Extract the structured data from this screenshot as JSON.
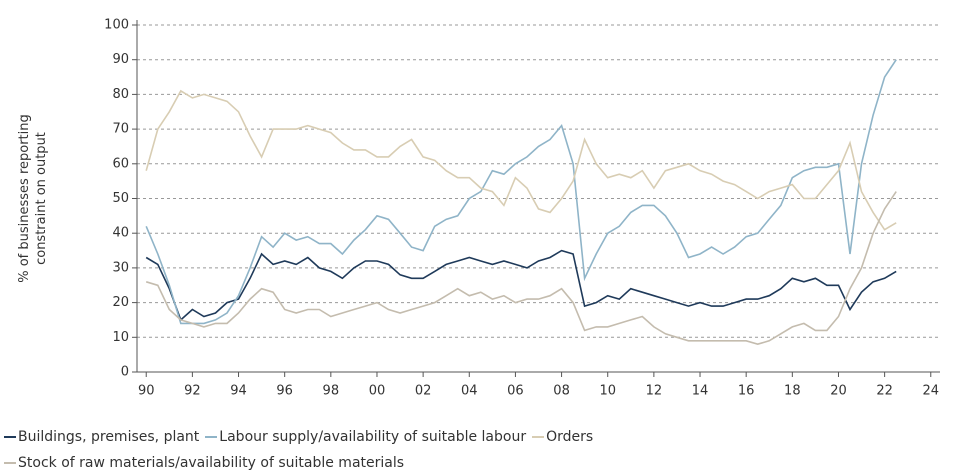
{
  "chart_data": {
    "type": "line",
    "ylabel": [
      "% of businesses reporting",
      "constraint on output"
    ],
    "x": [
      1990,
      1990.5,
      1991,
      1991.5,
      1992,
      1992.5,
      1993,
      1993.5,
      1994,
      1994.5,
      1995,
      1995.5,
      1996,
      1996.5,
      1997,
      1997.5,
      1998,
      1998.5,
      1999,
      1999.5,
      2000,
      2000.5,
      2001,
      2001.5,
      2002,
      2002.5,
      2003,
      2003.5,
      2004,
      2004.5,
      2005,
      2005.5,
      2006,
      2006.5,
      2007,
      2007.5,
      2008,
      2008.5,
      2009,
      2009.5,
      2010,
      2010.5,
      2011,
      2011.5,
      2012,
      2012.5,
      2013,
      2013.5,
      2014,
      2014.5,
      2015,
      2015.5,
      2016,
      2016.5,
      2017,
      2017.5,
      2018,
      2018.5,
      2019,
      2019.5,
      2020,
      2020.5,
      2021,
      2021.5,
      2022,
      2022.5
    ],
    "series": [
      {
        "name": "Buildings, premises, plant",
        "color": "#1f3a5a",
        "values": [
          33,
          31,
          24,
          15,
          18,
          16,
          17,
          20,
          21,
          27,
          34,
          31,
          32,
          31,
          33,
          30,
          29,
          27,
          30,
          32,
          32,
          31,
          28,
          27,
          27,
          29,
          31,
          32,
          33,
          32,
          31,
          32,
          31,
          30,
          32,
          33,
          35,
          34,
          19,
          20,
          22,
          21,
          24,
          23,
          22,
          21,
          20,
          19,
          20,
          19,
          19,
          20,
          21,
          21,
          22,
          24,
          27,
          26,
          27,
          25,
          25,
          18,
          23,
          26,
          27,
          29
        ]
      },
      {
        "name": "Labour supply/availability of suitable labour",
        "color": "#8fb4c8",
        "values": [
          42,
          34,
          25,
          14,
          14,
          14,
          15,
          17,
          22,
          30,
          39,
          36,
          40,
          38,
          39,
          37,
          37,
          34,
          38,
          41,
          45,
          44,
          40,
          36,
          35,
          42,
          44,
          45,
          50,
          52,
          58,
          57,
          60,
          62,
          65,
          67,
          71,
          60,
          27,
          34,
          40,
          42,
          46,
          48,
          48,
          45,
          40,
          33,
          34,
          36,
          34,
          36,
          39,
          40,
          44,
          48,
          56,
          58,
          59,
          59,
          60,
          34,
          60,
          74,
          85,
          90
        ]
      },
      {
        "name": "Orders",
        "color": "#d8cdb3",
        "values": [
          58,
          70,
          75,
          81,
          79,
          80,
          79,
          78,
          75,
          68,
          62,
          70,
          70,
          70,
          71,
          70,
          69,
          66,
          64,
          64,
          62,
          62,
          65,
          67,
          62,
          61,
          58,
          56,
          56,
          53,
          52,
          48,
          56,
          53,
          47,
          46,
          50,
          55,
          67,
          60,
          56,
          57,
          56,
          58,
          53,
          58,
          59,
          60,
          58,
          57,
          55,
          54,
          52,
          50,
          52,
          53,
          54,
          50,
          50,
          54,
          58,
          66,
          52,
          46,
          41,
          43
        ]
      },
      {
        "name": "Stock of raw materials/availability of suitable materials",
        "color": "#c4bcae",
        "values": [
          26,
          25,
          18,
          15,
          14,
          13,
          14,
          14,
          17,
          21,
          24,
          23,
          18,
          17,
          18,
          18,
          16,
          17,
          18,
          19,
          20,
          18,
          17,
          18,
          19,
          20,
          22,
          24,
          22,
          23,
          21,
          22,
          20,
          21,
          21,
          22,
          24,
          20,
          12,
          13,
          13,
          14,
          15,
          16,
          13,
          11,
          10,
          9,
          9,
          9,
          9,
          9,
          9,
          8,
          9,
          11,
          13,
          14,
          12,
          12,
          16,
          24,
          30,
          40,
          47,
          52
        ]
      }
    ],
    "xlim": [
      1989.6,
      2024.4
    ],
    "xticks": [
      {
        "value": 1990,
        "label": "90"
      },
      {
        "value": 1992,
        "label": "92"
      },
      {
        "value": 1994,
        "label": "94"
      },
      {
        "value": 1996,
        "label": "96"
      },
      {
        "value": 1998,
        "label": "98"
      },
      {
        "value": 2000,
        "label": "00"
      },
      {
        "value": 2002,
        "label": "02"
      },
      {
        "value": 2004,
        "label": "04"
      },
      {
        "value": 2006,
        "label": "06"
      },
      {
        "value": 2008,
        "label": "08"
      },
      {
        "value": 2010,
        "label": "10"
      },
      {
        "value": 2012,
        "label": "12"
      },
      {
        "value": 2014,
        "label": "14"
      },
      {
        "value": 2016,
        "label": "16"
      },
      {
        "value": 2018,
        "label": "18"
      },
      {
        "value": 2020,
        "label": "20"
      },
      {
        "value": 2022,
        "label": "22"
      },
      {
        "value": 2024,
        "label": "24"
      }
    ],
    "ylim": [
      0,
      100
    ],
    "yticks": [
      0,
      10,
      20,
      30,
      40,
      50,
      60,
      70,
      80,
      90,
      100
    ],
    "grid": true
  }
}
